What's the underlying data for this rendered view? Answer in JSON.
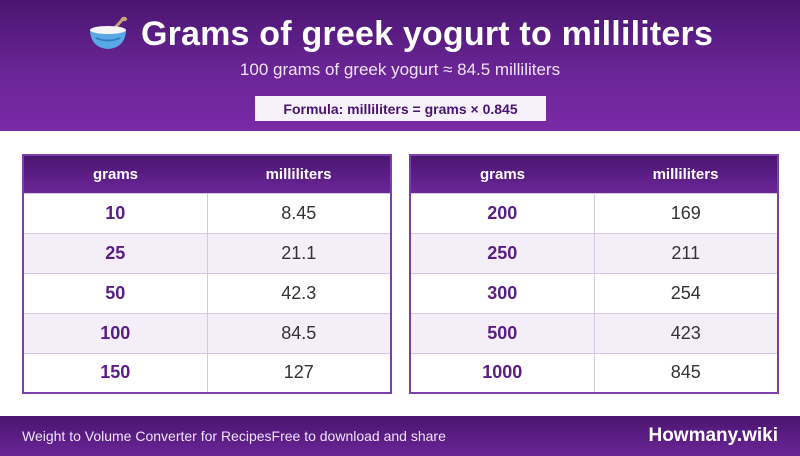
{
  "header": {
    "title": "Grams of greek yogurt to milliliters",
    "icon": "bowl-with-spoon-icon",
    "subtitle": "100 grams of greek yogurt ≈ 84.5 milliliters",
    "formula": "Formula: milliliters = grams × 0.845"
  },
  "tables": [
    {
      "headers": [
        "grams",
        "milliliters"
      ],
      "rows": [
        {
          "grams": "10",
          "ml": "8.45"
        },
        {
          "grams": "25",
          "ml": "21.1"
        },
        {
          "grams": "50",
          "ml": "42.3"
        },
        {
          "grams": "100",
          "ml": "84.5"
        },
        {
          "grams": "150",
          "ml": "127"
        }
      ]
    },
    {
      "headers": [
        "grams",
        "milliliters"
      ],
      "rows": [
        {
          "grams": "200",
          "ml": "169"
        },
        {
          "grams": "250",
          "ml": "211"
        },
        {
          "grams": "300",
          "ml": "254"
        },
        {
          "grams": "500",
          "ml": "423"
        },
        {
          "grams": "1000",
          "ml": "845"
        }
      ]
    }
  ],
  "footer": {
    "left": "Weight to Volume Converter for Recipes",
    "note": "Free to download and share",
    "brand": "Howmany.wiki"
  },
  "colors": {
    "header_purple": "#6a2596",
    "dark_purple": "#4a1570",
    "row_tint": "#f4eef9"
  }
}
